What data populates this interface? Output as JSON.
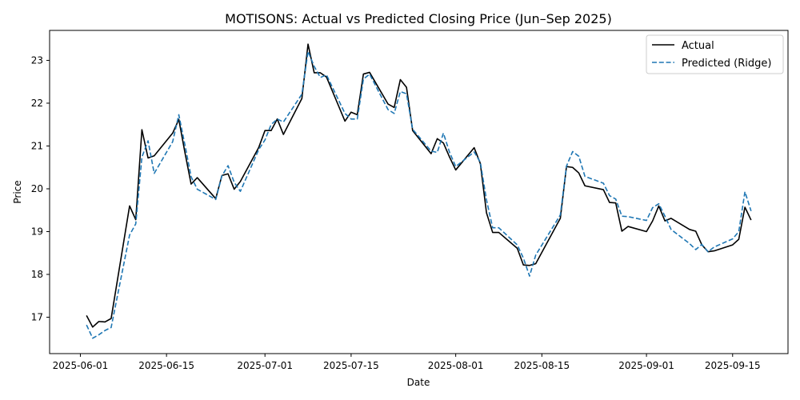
{
  "chart_data": {
    "type": "line",
    "title": "MOTISONS: Actual vs Predicted Closing Price (Jun–Sep 2025)",
    "xlabel": "Date",
    "ylabel": "Price",
    "x_ticks": [
      "2025-06-01",
      "2025-06-15",
      "2025-07-01",
      "2025-07-15",
      "2025-08-01",
      "2025-08-15",
      "2025-09-01",
      "2025-09-15"
    ],
    "y_ticks": [
      17,
      18,
      19,
      20,
      21,
      22,
      23
    ],
    "xlim": [
      "2025-05-27",
      "2025-09-24"
    ],
    "ylim": [
      16.15,
      23.7
    ],
    "grid": false,
    "legend_position": "top-right",
    "series": [
      {
        "name": "Actual",
        "color": "#000000",
        "style": "solid",
        "points": [
          [
            "2025-06-02",
            17.04
          ],
          [
            "2025-06-03",
            16.77
          ],
          [
            "2025-06-04",
            16.9
          ],
          [
            "2025-06-05",
            16.89
          ],
          [
            "2025-06-06",
            16.97
          ],
          [
            "2025-06-09",
            19.6
          ],
          [
            "2025-06-10",
            19.28
          ],
          [
            "2025-06-11",
            21.38
          ],
          [
            "2025-06-12",
            20.72
          ],
          [
            "2025-06-13",
            20.77
          ],
          [
            "2025-06-16",
            21.3
          ],
          [
            "2025-06-17",
            21.62
          ],
          [
            "2025-06-18",
            20.84
          ],
          [
            "2025-06-19",
            20.11
          ],
          [
            "2025-06-20",
            20.26
          ],
          [
            "2025-06-23",
            19.77
          ],
          [
            "2025-06-24",
            20.31
          ],
          [
            "2025-06-25",
            20.35
          ],
          [
            "2025-06-26",
            19.99
          ],
          [
            "2025-06-27",
            20.17
          ],
          [
            "2025-06-30",
            20.97
          ],
          [
            "2025-07-01",
            21.36
          ],
          [
            "2025-07-02",
            21.36
          ],
          [
            "2025-07-03",
            21.63
          ],
          [
            "2025-07-04",
            21.27
          ],
          [
            "2025-07-07",
            22.11
          ],
          [
            "2025-07-08",
            23.38
          ],
          [
            "2025-07-09",
            22.71
          ],
          [
            "2025-07-10",
            22.71
          ],
          [
            "2025-07-11",
            22.61
          ],
          [
            "2025-07-14",
            21.58
          ],
          [
            "2025-07-15",
            21.79
          ],
          [
            "2025-07-16",
            21.73
          ],
          [
            "2025-07-17",
            22.68
          ],
          [
            "2025-07-18",
            22.72
          ],
          [
            "2025-07-21",
            21.98
          ],
          [
            "2025-07-22",
            21.9
          ],
          [
            "2025-07-23",
            22.55
          ],
          [
            "2025-07-24",
            22.37
          ],
          [
            "2025-07-25",
            21.36
          ],
          [
            "2025-07-28",
            20.82
          ],
          [
            "2025-07-29",
            21.17
          ],
          [
            "2025-07-30",
            21.07
          ],
          [
            "2025-07-31",
            20.74
          ],
          [
            "2025-08-01",
            20.44
          ],
          [
            "2025-08-04",
            20.96
          ],
          [
            "2025-08-05",
            20.59
          ],
          [
            "2025-08-06",
            19.44
          ],
          [
            "2025-08-07",
            18.98
          ],
          [
            "2025-08-08",
            18.98
          ],
          [
            "2025-08-11",
            18.61
          ],
          [
            "2025-08-12",
            18.22
          ],
          [
            "2025-08-13",
            18.21
          ],
          [
            "2025-08-14",
            18.25
          ],
          [
            "2025-08-18",
            19.31
          ],
          [
            "2025-08-19",
            20.52
          ],
          [
            "2025-08-20",
            20.5
          ],
          [
            "2025-08-21",
            20.37
          ],
          [
            "2025-08-22",
            20.07
          ],
          [
            "2025-08-25",
            19.98
          ],
          [
            "2025-08-26",
            19.68
          ],
          [
            "2025-08-27",
            19.67
          ],
          [
            "2025-08-28",
            19.01
          ],
          [
            "2025-08-29",
            19.12
          ],
          [
            "2025-09-01",
            19.0
          ],
          [
            "2025-09-02",
            19.25
          ],
          [
            "2025-09-03",
            19.6
          ],
          [
            "2025-09-04",
            19.25
          ],
          [
            "2025-09-05",
            19.31
          ],
          [
            "2025-09-08",
            19.05
          ],
          [
            "2025-09-09",
            19.01
          ],
          [
            "2025-09-10",
            18.69
          ],
          [
            "2025-09-11",
            18.53
          ],
          [
            "2025-09-12",
            18.55
          ],
          [
            "2025-09-15",
            18.69
          ],
          [
            "2025-09-16",
            18.82
          ],
          [
            "2025-09-17",
            19.57
          ],
          [
            "2025-09-18",
            19.27
          ]
        ]
      },
      {
        "name": "Predicted (Ridge)",
        "color": "#1f77b4",
        "style": "dashed",
        "points": [
          [
            "2025-06-02",
            16.82
          ],
          [
            "2025-06-03",
            16.51
          ],
          [
            "2025-06-04",
            16.59
          ],
          [
            "2025-06-05",
            16.69
          ],
          [
            "2025-06-06",
            16.76
          ],
          [
            "2025-06-09",
            18.92
          ],
          [
            "2025-06-10",
            19.18
          ],
          [
            "2025-06-11",
            20.74
          ],
          [
            "2025-06-12",
            21.12
          ],
          [
            "2025-06-13",
            20.36
          ],
          [
            "2025-06-16",
            21.1
          ],
          [
            "2025-06-17",
            21.73
          ],
          [
            "2025-06-18",
            21.02
          ],
          [
            "2025-06-19",
            20.28
          ],
          [
            "2025-06-20",
            19.99
          ],
          [
            "2025-06-23",
            19.75
          ],
          [
            "2025-06-24",
            20.3
          ],
          [
            "2025-06-25",
            20.54
          ],
          [
            "2025-06-26",
            20.15
          ],
          [
            "2025-06-27",
            19.94
          ],
          [
            "2025-06-30",
            20.92
          ],
          [
            "2025-07-01",
            21.14
          ],
          [
            "2025-07-02",
            21.5
          ],
          [
            "2025-07-03",
            21.63
          ],
          [
            "2025-07-04",
            21.56
          ],
          [
            "2025-07-07",
            22.21
          ],
          [
            "2025-07-08",
            23.21
          ],
          [
            "2025-07-09",
            22.86
          ],
          [
            "2025-07-10",
            22.6
          ],
          [
            "2025-07-11",
            22.66
          ],
          [
            "2025-07-14",
            21.76
          ],
          [
            "2025-07-15",
            21.63
          ],
          [
            "2025-07-16",
            21.63
          ],
          [
            "2025-07-17",
            22.56
          ],
          [
            "2025-07-18",
            22.68
          ],
          [
            "2025-07-21",
            21.85
          ],
          [
            "2025-07-22",
            21.76
          ],
          [
            "2025-07-23",
            22.27
          ],
          [
            "2025-07-24",
            22.22
          ],
          [
            "2025-07-25",
            21.39
          ],
          [
            "2025-07-28",
            20.88
          ],
          [
            "2025-07-29",
            20.85
          ],
          [
            "2025-07-30",
            21.3
          ],
          [
            "2025-07-31",
            20.85
          ],
          [
            "2025-08-01",
            20.52
          ],
          [
            "2025-08-04",
            20.86
          ],
          [
            "2025-08-05",
            20.62
          ],
          [
            "2025-08-06",
            19.74
          ],
          [
            "2025-08-07",
            19.09
          ],
          [
            "2025-08-08",
            19.09
          ],
          [
            "2025-08-11",
            18.69
          ],
          [
            "2025-08-12",
            18.38
          ],
          [
            "2025-08-13",
            17.96
          ],
          [
            "2025-08-14",
            18.45
          ],
          [
            "2025-08-18",
            19.39
          ],
          [
            "2025-08-19",
            20.53
          ],
          [
            "2025-08-20",
            20.87
          ],
          [
            "2025-08-21",
            20.76
          ],
          [
            "2025-08-22",
            20.29
          ],
          [
            "2025-08-25",
            20.13
          ],
          [
            "2025-08-26",
            19.84
          ],
          [
            "2025-08-27",
            19.76
          ],
          [
            "2025-08-28",
            19.36
          ],
          [
            "2025-08-29",
            19.35
          ],
          [
            "2025-09-01",
            19.26
          ],
          [
            "2025-09-02",
            19.56
          ],
          [
            "2025-09-03",
            19.65
          ],
          [
            "2025-09-04",
            19.36
          ],
          [
            "2025-09-05",
            19.05
          ],
          [
            "2025-09-08",
            18.72
          ],
          [
            "2025-09-09",
            18.58
          ],
          [
            "2025-09-10",
            18.7
          ],
          [
            "2025-09-11",
            18.53
          ],
          [
            "2025-09-12",
            18.64
          ],
          [
            "2025-09-15",
            18.83
          ],
          [
            "2025-09-16",
            19.0
          ],
          [
            "2025-09-17",
            19.93
          ],
          [
            "2025-09-18",
            19.48
          ]
        ]
      }
    ]
  }
}
